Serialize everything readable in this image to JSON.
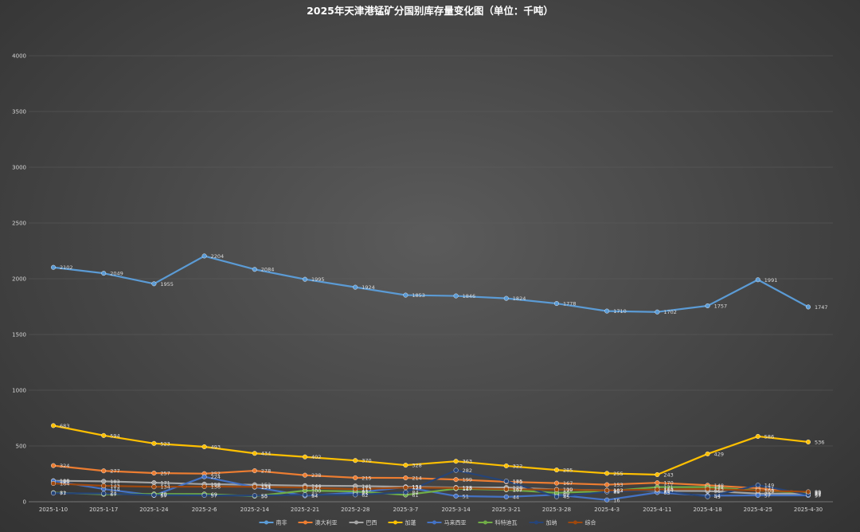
{
  "chart_data": {
    "type": "line",
    "title": "2025年天津港锰矿分国别库存量变化图（单位：千吨）",
    "xlabel": "",
    "ylabel": "",
    "ylim": [
      0,
      4000
    ],
    "yticks": [
      "0",
      "500",
      "1000",
      "1500",
      "2000",
      "2500",
      "3000",
      "3500",
      "4000"
    ],
    "grid": true,
    "legend_position": "bottom",
    "categories": [
      "2025-1-10",
      "2025-1-17",
      "2025-1-24",
      "2025-2-6",
      "2025-2-14",
      "2025-2-21",
      "2025-2-28",
      "2025-3-7",
      "2025-3-14",
      "2025-3-21",
      "2025-3-28",
      "2025-4-3",
      "2025-4-11",
      "2025-4-18",
      "2025-4-25",
      "2025-4-30"
    ],
    "series": [
      {
        "name": "南非",
        "color": "#5b9bd5",
        "values": [
          2102,
          2049,
          1955,
          2204,
          2084,
          1995,
          1924,
          1853,
          1846,
          1824,
          1778,
          1710,
          1702,
          1757,
          1991,
          1747
        ]
      },
      {
        "name": "澳大利亚",
        "color": "#ed7d31",
        "values": [
          324,
          277,
          257,
          252,
          278,
          238,
          215,
          214,
          199,
          179,
          167,
          153,
          170,
          148,
          121,
          81
        ]
      },
      {
        "name": "巴西",
        "color": "#a5a5a5",
        "values": [
          188,
          183,
          171,
          158,
          152,
          144,
          141,
          134,
          128,
          128,
          110,
          103,
          98,
          96,
          73,
          71
        ]
      },
      {
        "name": "加蓬",
        "color": "#ffc000",
        "values": [
          683,
          594,
          523,
          493,
          434,
          402,
          370,
          328,
          363,
          322,
          285,
          255,
          243,
          429,
          586,
          536
        ]
      },
      {
        "name": "马来西亚",
        "color": "#4472c4",
        "values": [
          186,
          114,
          57,
          224,
          131,
          54,
          81,
          131,
          51,
          44,
          62,
          16,
          83,
          54,
          57,
          57
        ]
      },
      {
        "name": "科特迪瓦",
        "color": "#70ad47",
        "values": [
          81,
          67,
          70,
          69,
          50,
          100,
          93,
          61,
          117,
          107,
          80,
          95,
          131,
          131,
          101,
          80
        ]
      },
      {
        "name": "加纳",
        "color": "#264478",
        "values": [
          77,
          74,
          60,
          57,
          55,
          62,
          62,
          84,
          282,
          185,
          45,
          89,
          104,
          45,
          149,
          64
        ]
      },
      {
        "name": "综合",
        "color": "#9e480e",
        "values": [
          164,
          143,
          134,
          136,
          134,
          127,
          113,
          127,
          123,
          112,
          109,
          102,
          110,
          115,
          100,
          89
        ]
      }
    ]
  }
}
